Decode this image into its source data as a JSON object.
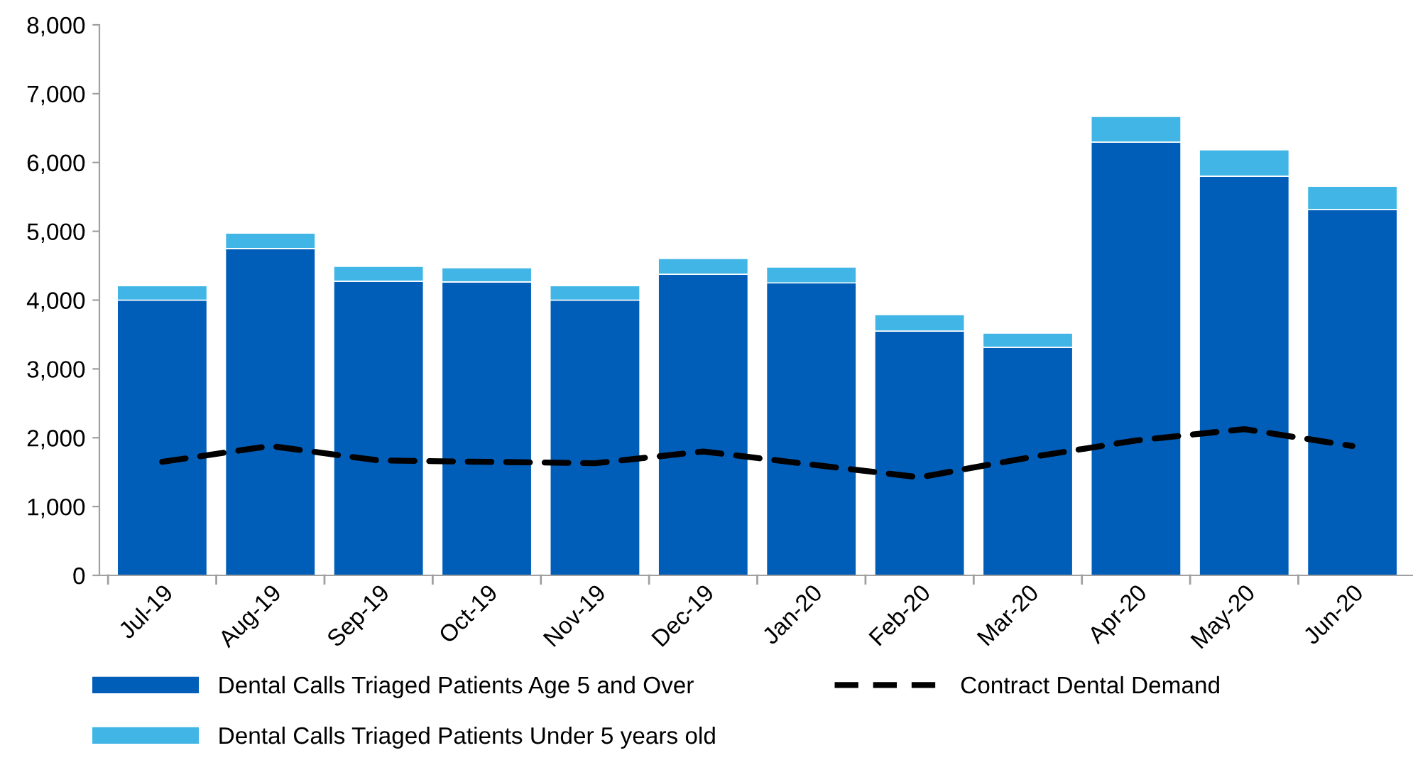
{
  "chart_data": {
    "type": "bar",
    "stacked": true,
    "categories": [
      "Jul-19",
      "Aug-19",
      "Sep-19",
      "Oct-19",
      "Nov-19",
      "Dec-19",
      "Jan-20",
      "Feb-20",
      "Mar-20",
      "Apr-20",
      "May-20",
      "Jun-20"
    ],
    "series": [
      {
        "name": "Dental Calls Triaged Patients Age 5 and Over",
        "color": "#005eb8",
        "values": [
          4000,
          4750,
          4275,
          4265,
          4000,
          4375,
          4250,
          3550,
          3315,
          6295,
          5800,
          5315
        ]
      },
      {
        "name": "Dental Calls Triaged Patients Under 5 years old",
        "color": "#41b6e6",
        "values": [
          210,
          225,
          215,
          205,
          210,
          230,
          230,
          240,
          205,
          375,
          385,
          340
        ]
      },
      {
        "name": "Contract Dental Demand",
        "type": "line",
        "color": "#000000",
        "line_style": "dashed",
        "values": [
          1650,
          1880,
          1670,
          1650,
          1630,
          1800,
          1610,
          1425,
          1710,
          1960,
          2125,
          1880
        ]
      }
    ],
    "ylim": [
      0,
      8000
    ],
    "yticks": [
      {
        "value": 0,
        "label": "0"
      },
      {
        "value": 1000,
        "label": "1,000"
      },
      {
        "value": 2000,
        "label": "2,000"
      },
      {
        "value": 3000,
        "label": "3,000"
      },
      {
        "value": 4000,
        "label": "4,000"
      },
      {
        "value": 5000,
        "label": "5,000"
      },
      {
        "value": 6000,
        "label": "6,000"
      },
      {
        "value": 7000,
        "label": "7,000"
      },
      {
        "value": 8000,
        "label": "8,000"
      }
    ],
    "grid": false,
    "legend": "bottom"
  }
}
